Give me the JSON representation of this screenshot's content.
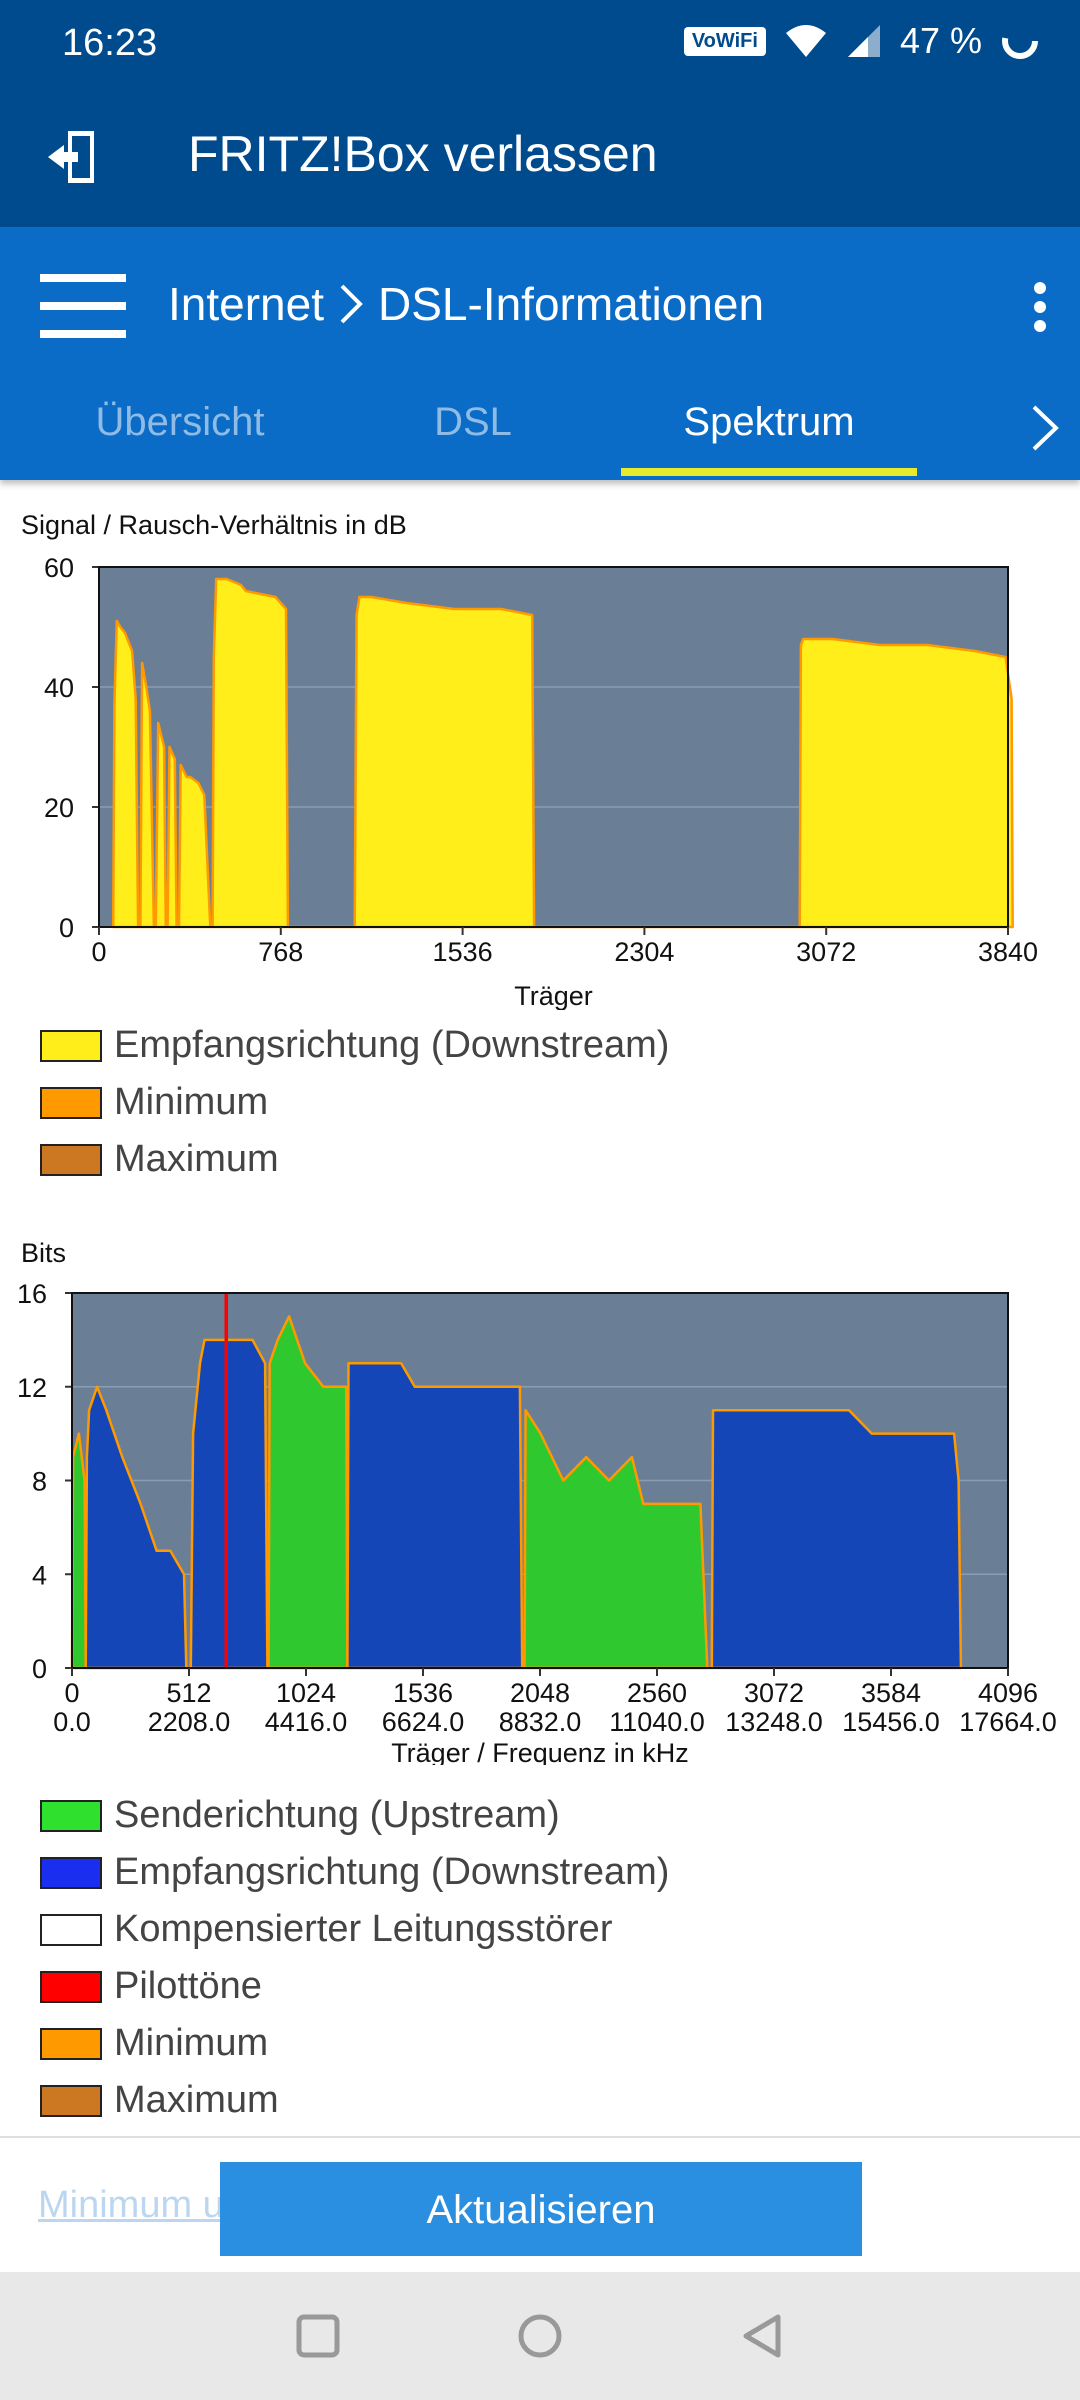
{
  "status": {
    "time": "16:23",
    "wifi_badge": "VoWiFi",
    "battery": "47 %"
  },
  "header": {
    "title": "FRITZ!Box verlassen"
  },
  "subheader": {
    "crumb_parent": "Internet",
    "crumb_current": "DSL-Informationen"
  },
  "tabs": [
    {
      "label": "Übersicht"
    },
    {
      "label": "DSL"
    },
    {
      "label": "Spektrum"
    }
  ],
  "colors": {
    "appbar": "#004b8d",
    "subbar": "#0a6cc6",
    "tab_indicator": "#e8ea2c",
    "plot_bg": "#6a7f96",
    "snr_fill": "#ffee1a",
    "upstream": "#2fc92f",
    "downstream": "#1446b8",
    "pilot": "#ff0000",
    "minimum": "#ff9900",
    "maximum": "#cc7722",
    "button": "#2a8fe0"
  },
  "chart_data": [
    {
      "type": "area",
      "title": "Signal / Rausch-Verhältnis in dB",
      "xlabel": "Träger",
      "ylabel": "",
      "xlim": [
        0,
        3840
      ],
      "ylim": [
        0,
        60
      ],
      "yticks": [
        "0",
        "20",
        "40",
        "60"
      ],
      "xticks": [
        "0",
        "768",
        "1536",
        "2304",
        "3072",
        "3840"
      ],
      "xtick_values": [
        0,
        768,
        1536,
        2304,
        3072,
        3840
      ],
      "grid": true,
      "series": [
        {
          "name": "Empfangsrichtung (Downstream)",
          "color": "#ffee1a",
          "points": [
            [
              60,
              0
            ],
            [
              65,
              37
            ],
            [
              75,
              51
            ],
            [
              90,
              50
            ],
            [
              110,
              49
            ],
            [
              140,
              46
            ],
            [
              155,
              38
            ],
            [
              165,
              0
            ],
            [
              175,
              0
            ],
            [
              182,
              44
            ],
            [
              200,
              40
            ],
            [
              215,
              36
            ],
            [
              232,
              0
            ],
            [
              240,
              0
            ],
            [
              250,
              34
            ],
            [
              275,
              30
            ],
            [
              282,
              0
            ],
            [
              290,
              0
            ],
            [
              298,
              30
            ],
            [
              320,
              28
            ],
            [
              328,
              0
            ],
            [
              338,
              0
            ],
            [
              345,
              27
            ],
            [
              370,
              25
            ],
            [
              385,
              25
            ],
            [
              420,
              24
            ],
            [
              445,
              22
            ],
            [
              470,
              0
            ],
            [
              480,
              0
            ],
            [
              485,
              45
            ],
            [
              495,
              58
            ],
            [
              510,
              58
            ],
            [
              540,
              58
            ],
            [
              600,
              57
            ],
            [
              620,
              56
            ],
            [
              745,
              55
            ],
            [
              790,
              53
            ],
            [
              798,
              0
            ],
            [
              1080,
              0
            ],
            [
              1088,
              52
            ],
            [
              1100,
              55
            ],
            [
              1150,
              55
            ],
            [
              1300,
              54
            ],
            [
              1500,
              53
            ],
            [
              1700,
              53
            ],
            [
              1830,
              52
            ],
            [
              1838,
              0
            ],
            [
              2960,
              0
            ],
            [
              2965,
              47
            ],
            [
              2975,
              48
            ],
            [
              3100,
              48
            ],
            [
              3300,
              47
            ],
            [
              3500,
              47
            ],
            [
              3700,
              46
            ],
            [
              3830,
              45
            ],
            [
              3855,
              38
            ],
            [
              3860,
              0
            ]
          ]
        },
        {
          "name": "Minimum",
          "color": "#ff9900",
          "points": []
        },
        {
          "name": "Maximum",
          "color": "#cc7722",
          "points": []
        }
      ]
    },
    {
      "type": "area",
      "title": "Bits",
      "xlabel": "Träger / Frequenz in kHz",
      "ylabel": "",
      "xlim": [
        0,
        4096
      ],
      "ylim": [
        0,
        16
      ],
      "yticks": [
        "0",
        "4",
        "8",
        "12",
        "16"
      ],
      "xticks": [
        "0",
        "512",
        "1024",
        "1536",
        "2048",
        "2560",
        "3072",
        "3584",
        "4096"
      ],
      "xticks_khz": [
        "0.0",
        "2208.0",
        "4416.0",
        "6624.0",
        "8832.0",
        "11040.0",
        "13248.0",
        "15456.0",
        "17664.0"
      ],
      "xtick_values": [
        0,
        512,
        1024,
        1536,
        2048,
        2560,
        3072,
        3584,
        4096
      ],
      "grid": true,
      "series": [
        {
          "name": "Senderichtung (Upstream)",
          "color": "#2fc92f",
          "points": [
            [
              0,
              0
            ],
            [
              5,
              9
            ],
            [
              30,
              10
            ],
            [
              55,
              8
            ],
            [
              60,
              0
            ],
            [
              860,
              0
            ],
            [
              865,
              13
            ],
            [
              900,
              14
            ],
            [
              950,
              15
            ],
            [
              1020,
              13
            ],
            [
              1100,
              12
            ],
            [
              1200,
              12
            ],
            [
              1205,
              0
            ],
            [
              1980,
              0
            ],
            [
              1985,
              11
            ],
            [
              2050,
              10
            ],
            [
              2150,
              8
            ],
            [
              2250,
              9
            ],
            [
              2350,
              8
            ],
            [
              2450,
              9
            ],
            [
              2500,
              7
            ],
            [
              2600,
              7
            ],
            [
              2750,
              7
            ],
            [
              2780,
              0
            ]
          ]
        },
        {
          "name": "Empfangsrichtung (Downstream)",
          "color": "#1446b8",
          "points": [
            [
              60,
              0
            ],
            [
              65,
              9
            ],
            [
              75,
              11
            ],
            [
              110,
              12
            ],
            [
              150,
              11
            ],
            [
              220,
              9
            ],
            [
              300,
              7
            ],
            [
              370,
              5
            ],
            [
              430,
              5
            ],
            [
              490,
              4
            ],
            [
              500,
              0
            ],
            [
              520,
              0
            ],
            [
              530,
              10
            ],
            [
              560,
              13
            ],
            [
              580,
              14
            ],
            [
              650,
              14
            ],
            [
              720,
              14
            ],
            [
              790,
              14
            ],
            [
              845,
              13
            ],
            [
              855,
              0
            ],
            [
              1205,
              0
            ],
            [
              1210,
              13
            ],
            [
              1300,
              13
            ],
            [
              1440,
              13
            ],
            [
              1500,
              12
            ],
            [
              1600,
              12
            ],
            [
              1750,
              12
            ],
            [
              1850,
              12
            ],
            [
              1960,
              12
            ],
            [
              1970,
              0
            ],
            [
              2800,
              0
            ],
            [
              2805,
              11
            ],
            [
              2850,
              11
            ],
            [
              3000,
              11
            ],
            [
              3100,
              11
            ],
            [
              3200,
              11
            ],
            [
              3300,
              11
            ],
            [
              3400,
              11
            ],
            [
              3500,
              10
            ],
            [
              3700,
              10
            ],
            [
              3860,
              10
            ],
            [
              3880,
              8
            ],
            [
              3890,
              0
            ]
          ]
        },
        {
          "name": "Kompensierter Leitungsstörer",
          "color": "#ffffff",
          "points": []
        },
        {
          "name": "Pilottöne",
          "color": "#ff0000",
          "carriers": [
            675
          ]
        },
        {
          "name": "Minimum",
          "color": "#ff9900",
          "points": []
        },
        {
          "name": "Maximum",
          "color": "#cc7722",
          "points": []
        }
      ]
    }
  ],
  "footer": {
    "link_label": "Minimum u",
    "button_label": "Aktualisieren"
  }
}
